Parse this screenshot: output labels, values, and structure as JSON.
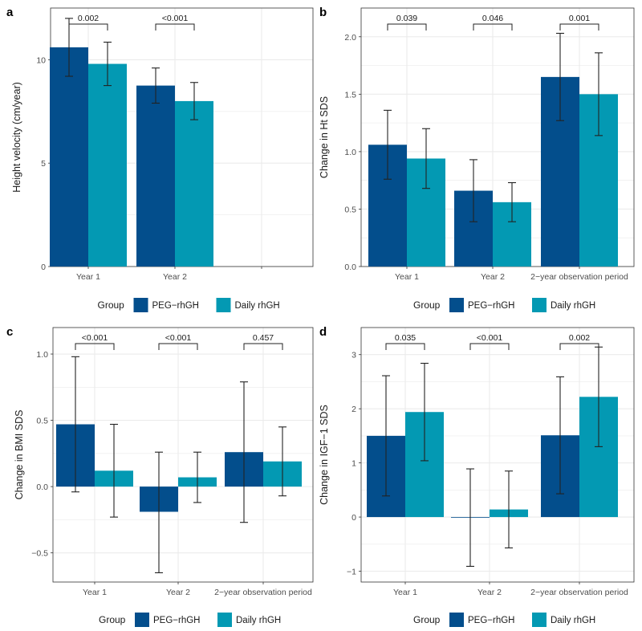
{
  "colors": {
    "peg": "#034e8c",
    "daily": "#0399b3",
    "grid": "#ebebeb",
    "axis": "#4d4d4d",
    "error": "#222222"
  },
  "legend": {
    "title": "Group",
    "items": [
      "PEG−rhGH",
      "Daily rhGH"
    ]
  },
  "chart_data": [
    {
      "panel": "a",
      "type": "bar",
      "ylabel": "Height velocity (cm/year)",
      "categories": [
        "Year 1",
        "Year 2",
        ""
      ],
      "ylim": [
        0,
        12.5
      ],
      "yticks": [
        0,
        5,
        10
      ],
      "series": [
        {
          "name": "PEG−rhGH",
          "values": [
            10.6,
            8.75,
            null
          ],
          "lower": [
            9.2,
            7.9,
            null
          ],
          "upper": [
            12.0,
            9.6,
            null
          ]
        },
        {
          "name": "Daily rhGH",
          "values": [
            9.8,
            8.0,
            null
          ],
          "lower": [
            8.75,
            7.1,
            null
          ],
          "upper": [
            10.85,
            8.9,
            null
          ]
        }
      ],
      "pvalues": [
        "0.002",
        "<0.001",
        null
      ]
    },
    {
      "panel": "b",
      "type": "bar",
      "ylabel": "Change in Ht SDS",
      "categories": [
        "Year 1",
        "Year 2",
        "2−year observation period"
      ],
      "ylim": [
        0,
        2.25
      ],
      "yticks": [
        0.0,
        0.5,
        1.0,
        1.5,
        2.0
      ],
      "ytick_labels": [
        "0.0",
        "0.5",
        "1.0",
        "1.5",
        "2.0"
      ],
      "series": [
        {
          "name": "PEG−rhGH",
          "values": [
            1.06,
            0.66,
            1.65
          ],
          "lower": [
            0.76,
            0.39,
            1.27
          ],
          "upper": [
            1.36,
            0.93,
            2.03
          ]
        },
        {
          "name": "Daily rhGH",
          "values": [
            0.94,
            0.56,
            1.5
          ],
          "lower": [
            0.68,
            0.39,
            1.14
          ],
          "upper": [
            1.2,
            0.73,
            1.86
          ]
        }
      ],
      "pvalues": [
        "0.039",
        "0.046",
        "0.001"
      ]
    },
    {
      "panel": "c",
      "type": "bar",
      "ylabel": "Change in BMI SDS",
      "categories": [
        "Year 1",
        "Year 2",
        "2−year observation period"
      ],
      "ylim": [
        -0.72,
        1.2
      ],
      "yticks": [
        -0.5,
        0.0,
        0.5,
        1.0
      ],
      "ytick_labels": [
        "−0.5",
        "0.0",
        "0.5",
        "1.0"
      ],
      "series": [
        {
          "name": "PEG−rhGH",
          "values": [
            0.47,
            -0.19,
            0.26
          ],
          "lower": [
            -0.04,
            -0.65,
            -0.27
          ],
          "upper": [
            0.98,
            0.26,
            0.79
          ]
        },
        {
          "name": "Daily rhGH",
          "values": [
            0.12,
            0.07,
            0.19
          ],
          "lower": [
            -0.23,
            -0.12,
            -0.07
          ],
          "upper": [
            0.47,
            0.26,
            0.45
          ]
        }
      ],
      "pvalues": [
        "<0.001",
        "<0.001",
        "0.457"
      ]
    },
    {
      "panel": "d",
      "type": "bar",
      "ylabel": "Change in IGF−1 SDS",
      "categories": [
        "Year 1",
        "Year 2",
        "2−year observation period"
      ],
      "ylim": [
        -1.2,
        3.5
      ],
      "yticks": [
        -1,
        0,
        1,
        2,
        3
      ],
      "ytick_labels": [
        "−1",
        "0",
        "1",
        "2",
        "3"
      ],
      "series": [
        {
          "name": "PEG−rhGH",
          "values": [
            1.5,
            -0.01,
            1.51
          ],
          "lower": [
            0.39,
            -0.91,
            0.43
          ],
          "upper": [
            2.61,
            0.89,
            2.59
          ]
        },
        {
          "name": "Daily rhGH",
          "values": [
            1.94,
            0.14,
            2.22
          ],
          "lower": [
            1.04,
            -0.57,
            1.3
          ],
          "upper": [
            2.84,
            0.85,
            3.14
          ]
        }
      ],
      "pvalues": [
        "0.035",
        "<0.001",
        "0.002"
      ]
    }
  ]
}
